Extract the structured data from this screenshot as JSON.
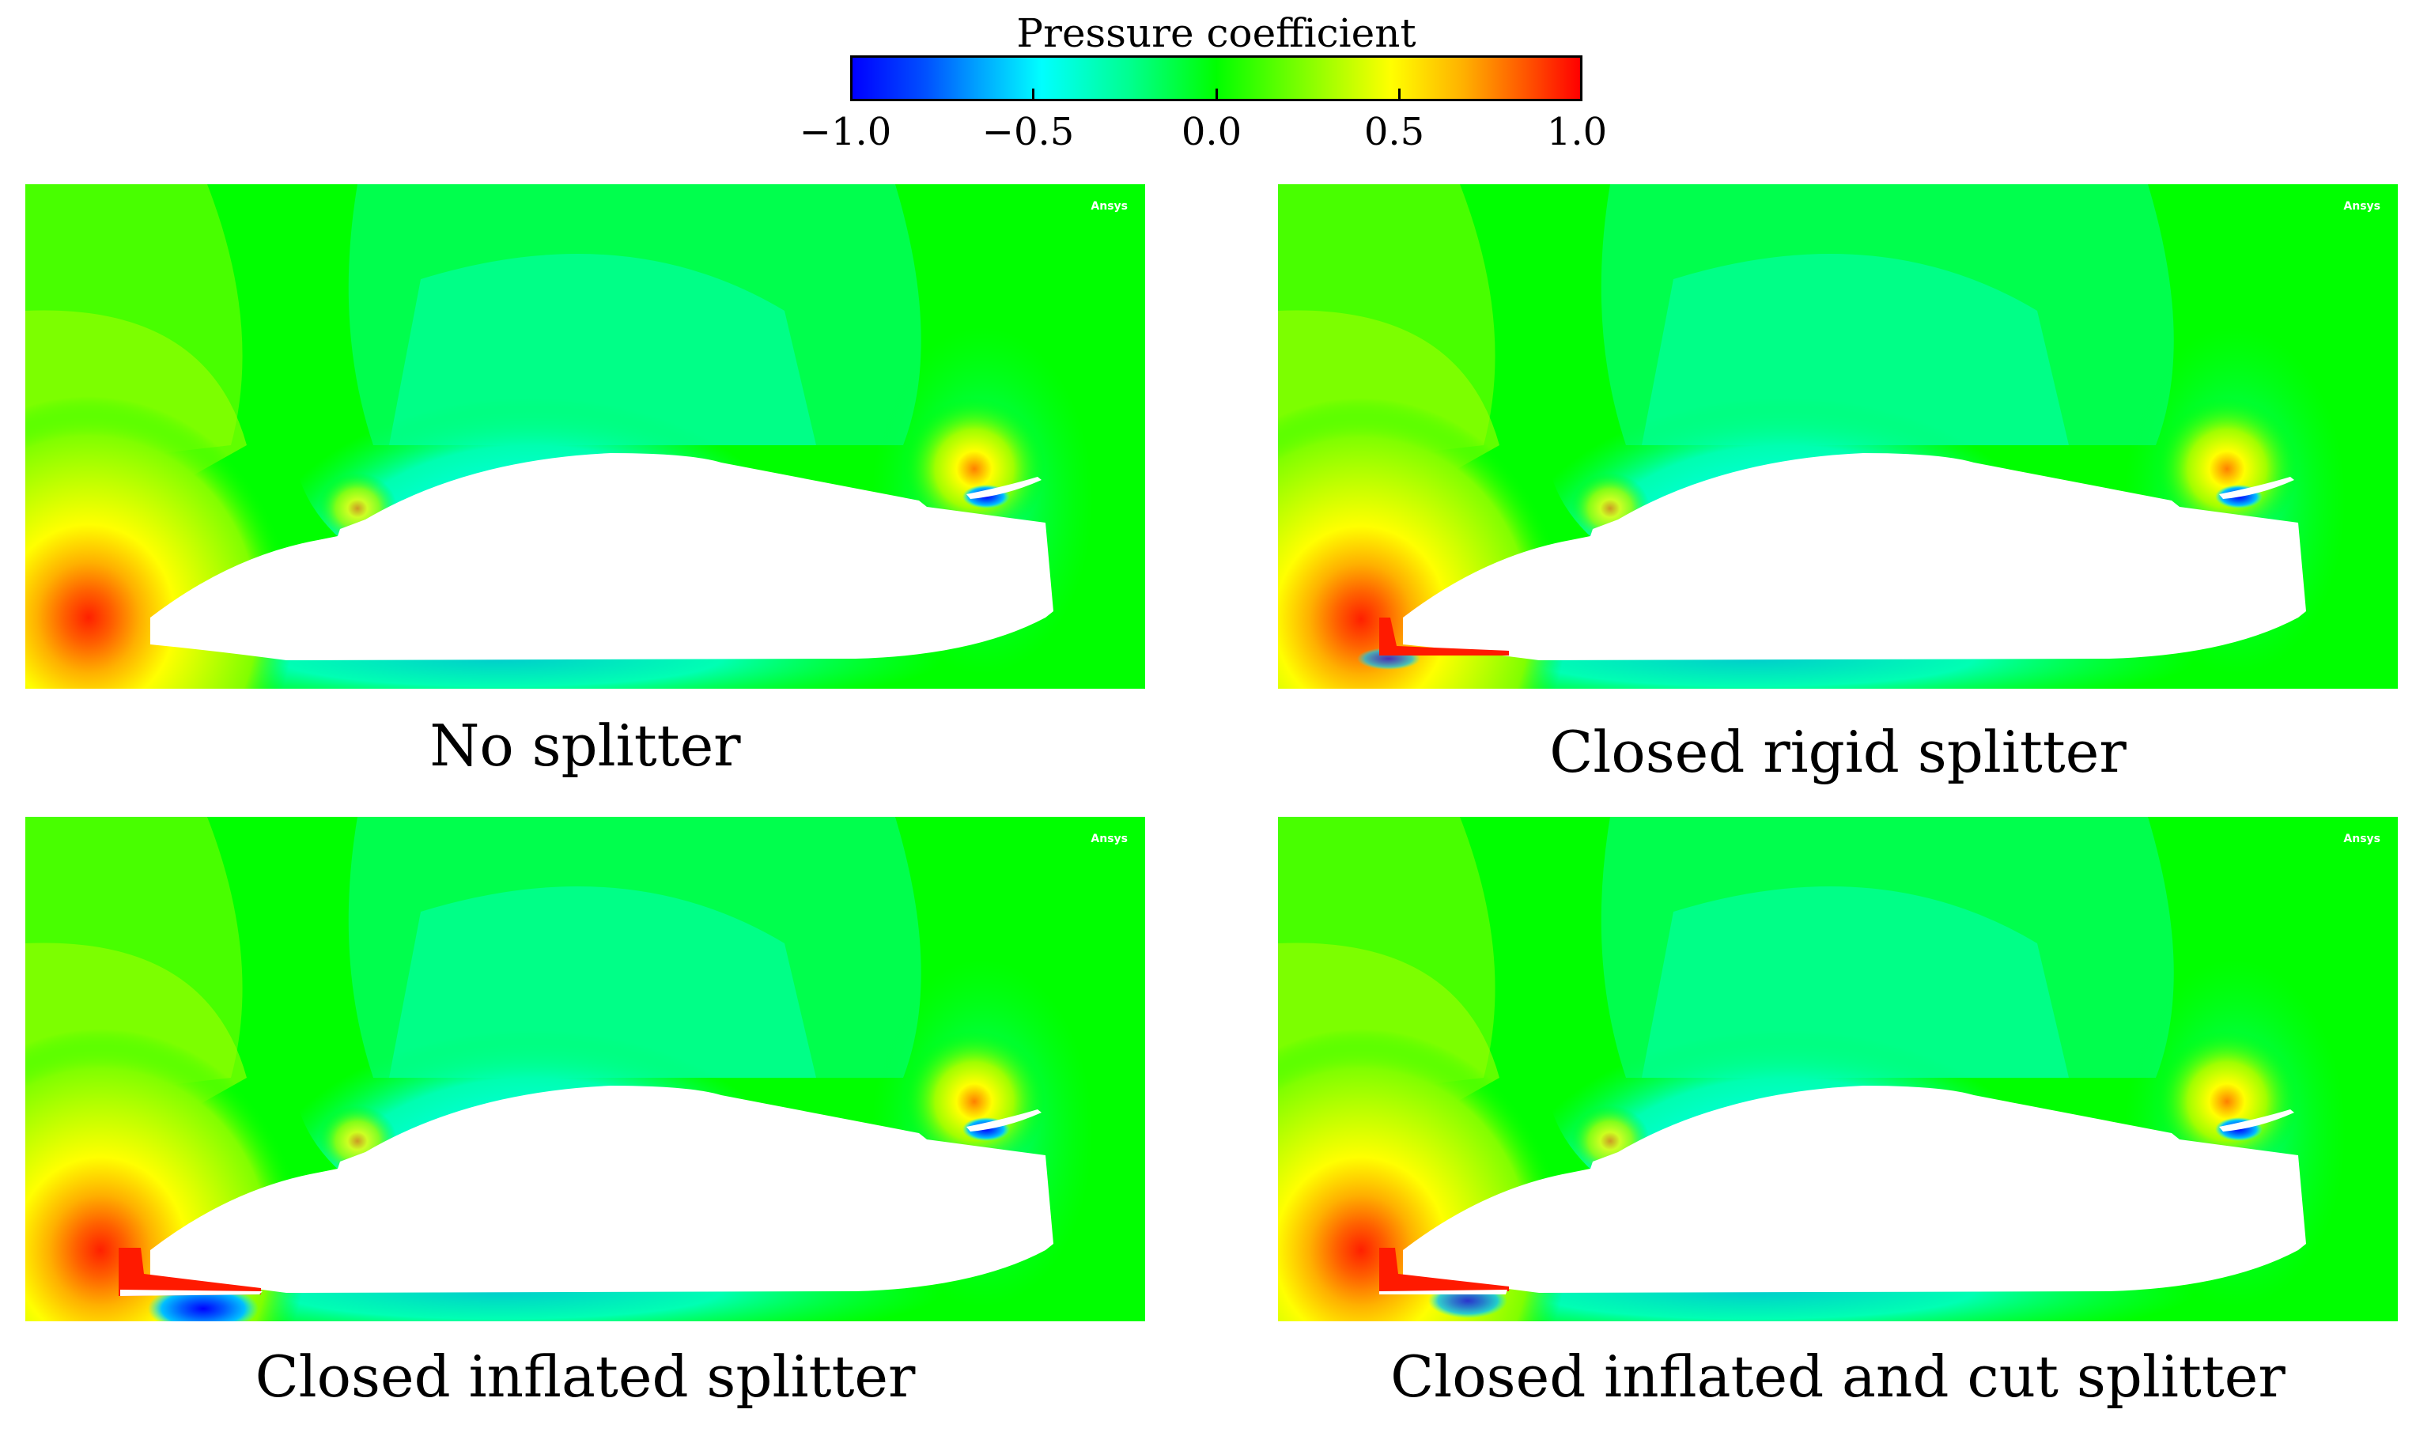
{
  "colorbar": {
    "title": "Pressure coefficient",
    "ticks": [
      "−1.0",
      "−0.5",
      "0.0",
      "0.5",
      "1.0"
    ],
    "range": [
      -1.0,
      1.0
    ],
    "colors": [
      "#0000ff",
      "#00ffff",
      "#00ff00",
      "#ffff00",
      "#ff0000"
    ]
  },
  "panels": [
    {
      "caption": "No splitter",
      "watermark": "Ansys",
      "splitter": "none"
    },
    {
      "caption": "Closed rigid splitter",
      "watermark": "Ansys",
      "splitter": "rigid"
    },
    {
      "caption": "Closed inflated splitter",
      "watermark": "Ansys",
      "splitter": "inflated"
    },
    {
      "caption": "Closed inflated and cut splitter",
      "watermark": "Ansys",
      "splitter": "inflated-cut"
    }
  ],
  "colors": {
    "background_field": "#00ff00",
    "stagnation": "#ff0000",
    "suction": "#0000ff",
    "body": "#ffffff"
  }
}
